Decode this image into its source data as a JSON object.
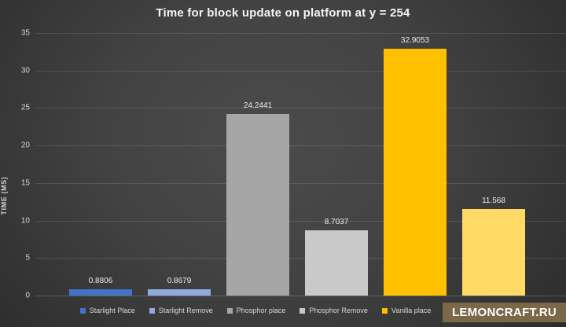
{
  "chart_data": {
    "type": "bar",
    "title": "Time for block update on platform at y = 254",
    "xlabel": "",
    "ylabel": "TIME (MS)",
    "ylim": [
      0,
      35
    ],
    "yticks": [
      0,
      5,
      10,
      15,
      20,
      25,
      30,
      35
    ],
    "grid": true,
    "legend_position": "bottom",
    "series": [
      {
        "name": "Starlight Place",
        "value": 0.8806,
        "value_label": "0.8806",
        "color": "#4472c4"
      },
      {
        "name": "Starlight Remove",
        "value": 0.8679,
        "value_label": "0.8679",
        "color": "#8faadc"
      },
      {
        "name": "Phosphor place",
        "value": 24.2441,
        "value_label": "24.2441",
        "color": "#a6a6a6"
      },
      {
        "name": "Phosphor Remove",
        "value": 8.7037,
        "value_label": "8.7037",
        "color": "#c9c9c9"
      },
      {
        "name": "Vanilla place",
        "value": 32.9053,
        "value_label": "32.9053",
        "color": "#ffc000"
      },
      {
        "name": "",
        "value": 11.568,
        "value_label": "11.568",
        "color": "#ffd966"
      }
    ]
  },
  "watermark": {
    "text": "LEMONCRAFT.RU",
    "background_color": "#7a6848"
  },
  "colors": {
    "background_center": "#4b4b4b",
    "background_edge": "#1c1c1c",
    "gridline": "rgba(255,255,255,0.12)",
    "axis_text": "#d4d4d4",
    "title_text": "#f5f5f5"
  }
}
